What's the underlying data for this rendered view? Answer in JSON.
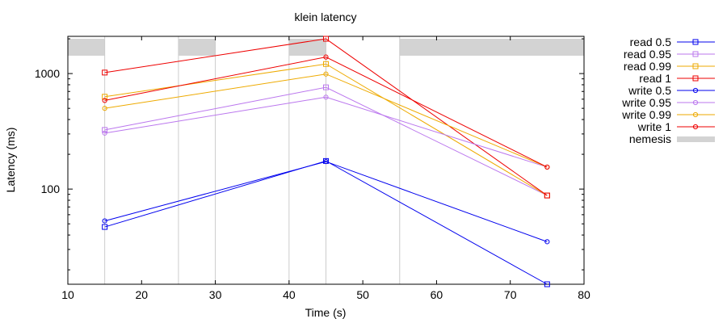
{
  "chart_data": {
    "type": "line",
    "title": "klein latency",
    "xlabel": "Time (s)",
    "ylabel": "Latency (ms)",
    "xlim": [
      10,
      80
    ],
    "ylim": [
      15,
      2100
    ],
    "yscale": "log",
    "x_ticks": [
      10,
      20,
      30,
      40,
      50,
      60,
      70,
      80
    ],
    "y_ticks": [
      100,
      1000
    ],
    "legend_position": "right",
    "grid": true,
    "series": [
      {
        "name": "read 0.5",
        "color": "#0000ee",
        "marker": "square",
        "points": [
          [
            15,
            47
          ],
          [
            45,
            175
          ],
          [
            75,
            15
          ]
        ]
      },
      {
        "name": "read 0.95",
        "color": "#bb77ee",
        "marker": "square",
        "points": [
          [
            15,
            325
          ],
          [
            45,
            760
          ],
          [
            75,
            88
          ]
        ]
      },
      {
        "name": "read 0.99",
        "color": "#eeaa00",
        "marker": "square",
        "points": [
          [
            15,
            630
          ],
          [
            45,
            1210
          ],
          [
            75,
            88
          ]
        ]
      },
      {
        "name": "read 1",
        "color": "#ee0000",
        "marker": "square",
        "points": [
          [
            15,
            1020
          ],
          [
            45,
            2000
          ],
          [
            75,
            88
          ]
        ]
      },
      {
        "name": "write 0.5",
        "color": "#0000ee",
        "marker": "circle",
        "points": [
          [
            15,
            53
          ],
          [
            45,
            173
          ],
          [
            75,
            35
          ]
        ]
      },
      {
        "name": "write 0.95",
        "color": "#bb77ee",
        "marker": "circle",
        "points": [
          [
            15,
            305
          ],
          [
            45,
            625
          ],
          [
            75,
            155
          ]
        ]
      },
      {
        "name": "write 0.99",
        "color": "#eeaa00",
        "marker": "circle",
        "points": [
          [
            15,
            500
          ],
          [
            45,
            990
          ],
          [
            75,
            155
          ]
        ]
      },
      {
        "name": "write 1",
        "color": "#ee0000",
        "marker": "circle",
        "points": [
          [
            15,
            585
          ],
          [
            45,
            1390
          ],
          [
            75,
            155
          ]
        ]
      }
    ],
    "nemesis": {
      "name": "nemesis",
      "color": "#d3d3d3",
      "line_color": "#cccccc",
      "intervals": [
        [
          10,
          15
        ],
        [
          25,
          30
        ],
        [
          40,
          45
        ],
        [
          55,
          80
        ]
      ]
    }
  }
}
